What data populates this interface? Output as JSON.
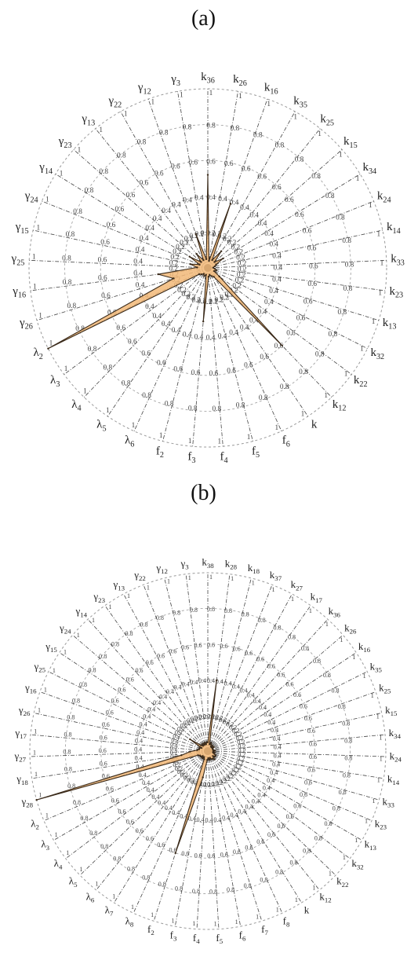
{
  "panels": [
    {
      "title": "(a)"
    },
    {
      "title": "(b)"
    }
  ],
  "chart_data": [
    {
      "type": "radar",
      "title": "(a)",
      "grid_levels": [
        "0.2",
        "0.4",
        "0.6",
        "0.8",
        "1"
      ],
      "rlim": [
        0,
        1
      ],
      "grid": true,
      "axes": [
        "k_36",
        "k_26",
        "k_16",
        "k_35",
        "k_25",
        "k_15",
        "k_34",
        "k_24",
        "k_14",
        "k_33",
        "k_23",
        "k_13",
        "k_32",
        "k_22",
        "k_12",
        "k",
        "f_6",
        "f_5",
        "f_4",
        "f_3",
        "f_2",
        "λ_6",
        "λ_5",
        "λ_4",
        "λ_3",
        "λ_2",
        "γ_26",
        "γ_16",
        "γ_25",
        "γ_15",
        "γ_24",
        "γ_14",
        "γ_23",
        "γ_13",
        "γ_22",
        "γ_12",
        "γ_3"
      ],
      "series": [
        {
          "values": [
            0.52,
            0.04,
            0.38,
            0.05,
            0.12,
            0.05,
            0.1,
            0.05,
            0.04,
            0.03,
            0.04,
            0.05,
            0.04,
            0.08,
            0.6,
            0.06,
            0.05,
            0.04,
            0.05,
            0.3,
            0.04,
            0.05,
            0.04,
            0.05,
            0.06,
            1.0,
            0.2,
            0.28,
            0.06,
            0.1,
            0.05,
            0.12,
            0.05,
            0.1,
            0.05,
            0.2,
            0.05
          ]
        }
      ],
      "fill_color": "#f2b978",
      "stroke_color": "#3a2a1a"
    },
    {
      "type": "radar",
      "title": "(b)",
      "grid_levels": [
        "0.2",
        "0.4",
        "0.6",
        "0.8",
        "1"
      ],
      "rlim": [
        0,
        1
      ],
      "grid": true,
      "axes": [
        "k_38",
        "k_28",
        "k_18",
        "k_37",
        "k_27",
        "k_17",
        "k_36",
        "k_26",
        "k_16",
        "k_35",
        "k_25",
        "k_15",
        "k_34",
        "k_24",
        "k_14",
        "k_33",
        "k_23",
        "k_13",
        "k_32",
        "k_22",
        "k_12",
        "k",
        "f_8",
        "f_7",
        "f_6",
        "f_5",
        "f_4",
        "f_3",
        "f_2",
        "λ_8",
        "λ_7",
        "λ_6",
        "λ_5",
        "λ_4",
        "λ_3",
        "λ_2",
        "γ_28",
        "γ_18",
        "γ_27",
        "γ_17",
        "γ_26",
        "γ_16",
        "γ_25",
        "γ_15",
        "γ_24",
        "γ_14",
        "γ_23",
        "γ_13",
        "γ_22",
        "γ_12",
        "γ_3"
      ],
      "series": [
        {
          "values": [
            0.05,
            0.4,
            0.04,
            0.05,
            0.04,
            0.03,
            0.04,
            0.03,
            0.04,
            0.03,
            0.03,
            0.03,
            0.04,
            0.03,
            0.04,
            0.03,
            0.04,
            0.05,
            0.05,
            0.04,
            0.06,
            0.05,
            0.05,
            0.04,
            0.05,
            0.04,
            0.05,
            0.15,
            0.6,
            0.05,
            0.04,
            0.05,
            0.04,
            0.05,
            0.05,
            0.06,
            1.0,
            0.15,
            0.1,
            0.06,
            0.05,
            0.05,
            0.04,
            0.12,
            0.05,
            0.04,
            0.05,
            0.04,
            0.05,
            0.04,
            0.05
          ]
        }
      ],
      "fill_color": "#f2b978",
      "stroke_color": "#3a2a1a"
    }
  ]
}
